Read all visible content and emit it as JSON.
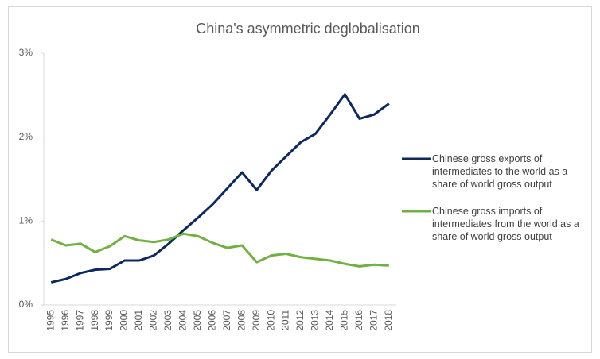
{
  "chart_data": {
    "type": "line",
    "title": "China's asymmetric deglobalisation",
    "categories": [
      "1995",
      "1996",
      "1997",
      "1998",
      "1999",
      "2000",
      "2001",
      "2002",
      "2003",
      "2004",
      "2005",
      "2006",
      "2007",
      "2008",
      "2009",
      "2010",
      "2011",
      "2012",
      "2013",
      "2014",
      "2015",
      "2016",
      "2017",
      "2018"
    ],
    "series": [
      {
        "name": "Chinese gross exports of intermediates to the world as a share of world gross output",
        "color": "#0d2a5e",
        "values": [
          0.27,
          0.31,
          0.38,
          0.42,
          0.43,
          0.53,
          0.53,
          0.59,
          0.73,
          0.89,
          1.04,
          1.2,
          1.39,
          1.58,
          1.37,
          1.6,
          1.77,
          1.94,
          2.04,
          2.27,
          2.51,
          2.22,
          2.27,
          2.4
        ]
      },
      {
        "name": "Chinese gross imports of intermediates from the world as a share of world gross output",
        "color": "#72b043",
        "values": [
          0.78,
          0.71,
          0.73,
          0.63,
          0.7,
          0.82,
          0.77,
          0.75,
          0.78,
          0.85,
          0.82,
          0.74,
          0.68,
          0.71,
          0.51,
          0.59,
          0.61,
          0.57,
          0.55,
          0.53,
          0.49,
          0.46,
          0.48,
          0.47
        ]
      }
    ],
    "ylim": [
      0,
      3
    ],
    "yticks": [
      {
        "value": 0,
        "label": "0%"
      },
      {
        "value": 1,
        "label": "1%"
      },
      {
        "value": 2,
        "label": "2%"
      },
      {
        "value": 3,
        "label": "3%"
      }
    ],
    "legend": "right"
  }
}
